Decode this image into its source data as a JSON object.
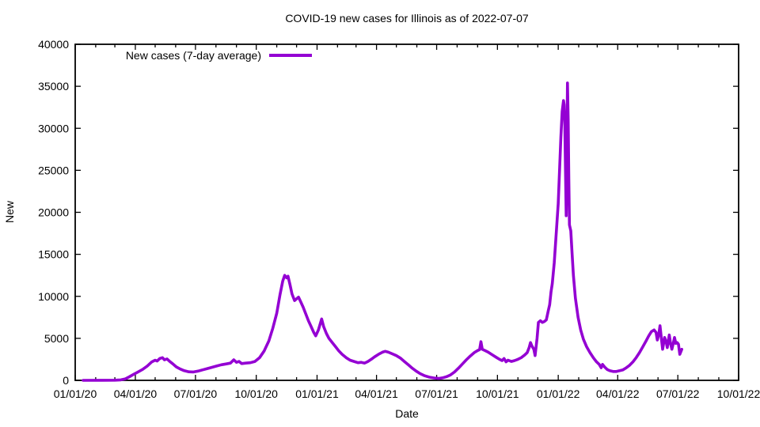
{
  "chart": {
    "title": "COVID-19 new cases for Illinois as of 2022-07-07",
    "legend_label": "New cases (7-day average)",
    "xlabel": "Date",
    "ylabel": "New",
    "line_color": "#9400D3",
    "axis_color": "#000000",
    "background_color": "#ffffff"
  },
  "chart_data": {
    "type": "line",
    "title": "COVID-19 new cases for Illinois as of 2022-07-07",
    "xlabel": "Date",
    "ylabel": "New",
    "ylim": [
      0,
      40000
    ],
    "y_ticks": [
      0,
      5000,
      10000,
      15000,
      20000,
      25000,
      30000,
      35000,
      40000
    ],
    "x_range": [
      "2020-01-01",
      "2022-10-01"
    ],
    "x_ticks": [
      {
        "date": "2020-01-01",
        "label": "01/01/20"
      },
      {
        "date": "2020-04-01",
        "label": "04/01/20"
      },
      {
        "date": "2020-07-01",
        "label": "07/01/20"
      },
      {
        "date": "2020-10-01",
        "label": "10/01/20"
      },
      {
        "date": "2021-01-01",
        "label": "01/01/21"
      },
      {
        "date": "2021-04-01",
        "label": "04/01/21"
      },
      {
        "date": "2021-07-01",
        "label": "07/01/21"
      },
      {
        "date": "2021-10-01",
        "label": "10/01/21"
      },
      {
        "date": "2022-01-01",
        "label": "01/01/22"
      },
      {
        "date": "2022-04-01",
        "label": "04/01/22"
      },
      {
        "date": "2022-07-01",
        "label": "07/01/22"
      },
      {
        "date": "2022-10-01",
        "label": "10/01/22"
      }
    ],
    "minor_tick_interval": "1 month",
    "grid": false,
    "legend": {
      "position": "top-left-inside",
      "entries": [
        "New cases (7-day average)"
      ]
    },
    "series": [
      {
        "name": "New cases (7-day average)",
        "color": "#9400D3",
        "points": [
          [
            "2020-01-13",
            0
          ],
          [
            "2020-02-10",
            5
          ],
          [
            "2020-03-01",
            15
          ],
          [
            "2020-03-10",
            60
          ],
          [
            "2020-03-17",
            180
          ],
          [
            "2020-03-23",
            420
          ],
          [
            "2020-03-29",
            700
          ],
          [
            "2020-04-05",
            1000
          ],
          [
            "2020-04-12",
            1300
          ],
          [
            "2020-04-19",
            1700
          ],
          [
            "2020-04-26",
            2200
          ],
          [
            "2020-05-01",
            2400
          ],
          [
            "2020-05-04",
            2300
          ],
          [
            "2020-05-08",
            2600
          ],
          [
            "2020-05-12",
            2700
          ],
          [
            "2020-05-15",
            2450
          ],
          [
            "2020-05-19",
            2550
          ],
          [
            "2020-05-23",
            2250
          ],
          [
            "2020-05-28",
            1950
          ],
          [
            "2020-06-02",
            1600
          ],
          [
            "2020-06-08",
            1350
          ],
          [
            "2020-06-14",
            1150
          ],
          [
            "2020-06-21",
            1020
          ],
          [
            "2020-06-28",
            1000
          ],
          [
            "2020-07-05",
            1100
          ],
          [
            "2020-07-12",
            1250
          ],
          [
            "2020-07-19",
            1400
          ],
          [
            "2020-07-26",
            1550
          ],
          [
            "2020-08-02",
            1700
          ],
          [
            "2020-08-09",
            1850
          ],
          [
            "2020-08-16",
            1950
          ],
          [
            "2020-08-23",
            2050
          ],
          [
            "2020-08-28",
            2450
          ],
          [
            "2020-09-01",
            2150
          ],
          [
            "2020-09-05",
            2250
          ],
          [
            "2020-09-09",
            2000
          ],
          [
            "2020-09-15",
            2050
          ],
          [
            "2020-09-22",
            2100
          ],
          [
            "2020-09-29",
            2250
          ],
          [
            "2020-10-06",
            2700
          ],
          [
            "2020-10-13",
            3500
          ],
          [
            "2020-10-20",
            4700
          ],
          [
            "2020-10-26",
            6200
          ],
          [
            "2020-11-01",
            8000
          ],
          [
            "2020-11-06",
            10200
          ],
          [
            "2020-11-10",
            11800
          ],
          [
            "2020-11-13",
            12500
          ],
          [
            "2020-11-16",
            12200
          ],
          [
            "2020-11-18",
            12400
          ],
          [
            "2020-11-21",
            11400
          ],
          [
            "2020-11-24",
            10300
          ],
          [
            "2020-11-28",
            9500
          ],
          [
            "2020-12-01",
            9700
          ],
          [
            "2020-12-04",
            9900
          ],
          [
            "2020-12-07",
            9400
          ],
          [
            "2020-12-11",
            8700
          ],
          [
            "2020-12-15",
            7900
          ],
          [
            "2020-12-19",
            7100
          ],
          [
            "2020-12-23",
            6400
          ],
          [
            "2020-12-27",
            5700
          ],
          [
            "2020-12-30",
            5300
          ],
          [
            "2021-01-03",
            6000
          ],
          [
            "2021-01-06",
            6800
          ],
          [
            "2021-01-08",
            7300
          ],
          [
            "2021-01-11",
            6400
          ],
          [
            "2021-01-15",
            5600
          ],
          [
            "2021-01-19",
            5000
          ],
          [
            "2021-01-24",
            4500
          ],
          [
            "2021-01-29",
            4000
          ],
          [
            "2021-02-03",
            3500
          ],
          [
            "2021-02-08",
            3100
          ],
          [
            "2021-02-14",
            2700
          ],
          [
            "2021-02-20",
            2400
          ],
          [
            "2021-02-26",
            2250
          ],
          [
            "2021-03-04",
            2100
          ],
          [
            "2021-03-09",
            2150
          ],
          [
            "2021-03-14",
            2050
          ],
          [
            "2021-03-19",
            2250
          ],
          [
            "2021-03-24",
            2500
          ],
          [
            "2021-03-29",
            2800
          ],
          [
            "2021-04-04",
            3100
          ],
          [
            "2021-04-10",
            3350
          ],
          [
            "2021-04-14",
            3450
          ],
          [
            "2021-04-19",
            3350
          ],
          [
            "2021-04-25",
            3150
          ],
          [
            "2021-05-01",
            2950
          ],
          [
            "2021-05-07",
            2650
          ],
          [
            "2021-05-13",
            2250
          ],
          [
            "2021-05-19",
            1850
          ],
          [
            "2021-05-25",
            1450
          ],
          [
            "2021-05-31",
            1100
          ],
          [
            "2021-06-06",
            800
          ],
          [
            "2021-06-13",
            550
          ],
          [
            "2021-06-20",
            380
          ],
          [
            "2021-06-27",
            280
          ],
          [
            "2021-07-04",
            230
          ],
          [
            "2021-07-10",
            300
          ],
          [
            "2021-07-16",
            430
          ],
          [
            "2021-07-22",
            650
          ],
          [
            "2021-07-28",
            1000
          ],
          [
            "2021-08-03",
            1450
          ],
          [
            "2021-08-09",
            1950
          ],
          [
            "2021-08-15",
            2450
          ],
          [
            "2021-08-21",
            2900
          ],
          [
            "2021-08-27",
            3300
          ],
          [
            "2021-09-01",
            3550
          ],
          [
            "2021-09-04",
            3650
          ],
          [
            "2021-09-06",
            4600
          ],
          [
            "2021-09-08",
            3700
          ],
          [
            "2021-09-12",
            3550
          ],
          [
            "2021-09-17",
            3350
          ],
          [
            "2021-09-23",
            3050
          ],
          [
            "2021-09-29",
            2750
          ],
          [
            "2021-10-04",
            2500
          ],
          [
            "2021-10-08",
            2350
          ],
          [
            "2021-10-11",
            2600
          ],
          [
            "2021-10-14",
            2200
          ],
          [
            "2021-10-17",
            2400
          ],
          [
            "2021-10-22",
            2250
          ],
          [
            "2021-10-27",
            2350
          ],
          [
            "2021-11-01",
            2500
          ],
          [
            "2021-11-06",
            2700
          ],
          [
            "2021-11-11",
            3000
          ],
          [
            "2021-11-15",
            3300
          ],
          [
            "2021-11-18",
            3900
          ],
          [
            "2021-11-20",
            4500
          ],
          [
            "2021-11-22",
            4100
          ],
          [
            "2021-11-25",
            3700
          ],
          [
            "2021-11-27",
            2950
          ],
          [
            "2021-11-30",
            5000
          ],
          [
            "2021-12-02",
            6900
          ],
          [
            "2021-12-05",
            7100
          ],
          [
            "2021-12-08",
            6900
          ],
          [
            "2021-12-11",
            7000
          ],
          [
            "2021-12-14",
            7200
          ],
          [
            "2021-12-17",
            8300
          ],
          [
            "2021-12-19",
            9000
          ],
          [
            "2021-12-21",
            10500
          ],
          [
            "2021-12-23",
            11500
          ],
          [
            "2021-12-26",
            14000
          ],
          [
            "2021-12-29",
            17500
          ],
          [
            "2022-01-01",
            21000
          ],
          [
            "2022-01-03",
            25000
          ],
          [
            "2022-01-05",
            29000
          ],
          [
            "2022-01-07",
            32000
          ],
          [
            "2022-01-09",
            33300
          ],
          [
            "2022-01-10",
            32800
          ],
          [
            "2022-01-11",
            30200
          ],
          [
            "2022-01-12",
            25000
          ],
          [
            "2022-01-13",
            19600
          ],
          [
            "2022-01-14",
            27000
          ],
          [
            "2022-01-15",
            35400
          ],
          [
            "2022-01-16",
            31000
          ],
          [
            "2022-01-17",
            24000
          ],
          [
            "2022-01-18",
            18500
          ],
          [
            "2022-01-20",
            17800
          ],
          [
            "2022-01-22",
            15000
          ],
          [
            "2022-01-24",
            12500
          ],
          [
            "2022-01-27",
            9800
          ],
          [
            "2022-01-31",
            7500
          ],
          [
            "2022-02-04",
            6000
          ],
          [
            "2022-02-08",
            4900
          ],
          [
            "2022-02-13",
            4000
          ],
          [
            "2022-02-18",
            3300
          ],
          [
            "2022-02-23",
            2700
          ],
          [
            "2022-02-28",
            2200
          ],
          [
            "2022-03-04",
            1900
          ],
          [
            "2022-03-07",
            1500
          ],
          [
            "2022-03-09",
            1900
          ],
          [
            "2022-03-12",
            1600
          ],
          [
            "2022-03-16",
            1300
          ],
          [
            "2022-03-20",
            1150
          ],
          [
            "2022-03-25",
            1050
          ],
          [
            "2022-03-30",
            1050
          ],
          [
            "2022-04-04",
            1150
          ],
          [
            "2022-04-09",
            1250
          ],
          [
            "2022-04-14",
            1500
          ],
          [
            "2022-04-19",
            1800
          ],
          [
            "2022-04-24",
            2200
          ],
          [
            "2022-04-29",
            2700
          ],
          [
            "2022-05-04",
            3300
          ],
          [
            "2022-05-09",
            4000
          ],
          [
            "2022-05-14",
            4700
          ],
          [
            "2022-05-18",
            5300
          ],
          [
            "2022-05-22",
            5800
          ],
          [
            "2022-05-26",
            6000
          ],
          [
            "2022-05-29",
            5700
          ],
          [
            "2022-05-31",
            4800
          ],
          [
            "2022-06-02",
            5400
          ],
          [
            "2022-06-04",
            6500
          ],
          [
            "2022-06-06",
            5100
          ],
          [
            "2022-06-08",
            3700
          ],
          [
            "2022-06-11",
            5100
          ],
          [
            "2022-06-13",
            4700
          ],
          [
            "2022-06-15",
            3900
          ],
          [
            "2022-06-18",
            5400
          ],
          [
            "2022-06-20",
            4400
          ],
          [
            "2022-06-22",
            3700
          ],
          [
            "2022-06-24",
            4400
          ],
          [
            "2022-06-26",
            5100
          ],
          [
            "2022-06-28",
            4400
          ],
          [
            "2022-06-30",
            4500
          ],
          [
            "2022-07-02",
            4300
          ],
          [
            "2022-07-04",
            3100
          ],
          [
            "2022-07-06",
            3500
          ],
          [
            "2022-07-07",
            3700
          ]
        ]
      }
    ]
  }
}
